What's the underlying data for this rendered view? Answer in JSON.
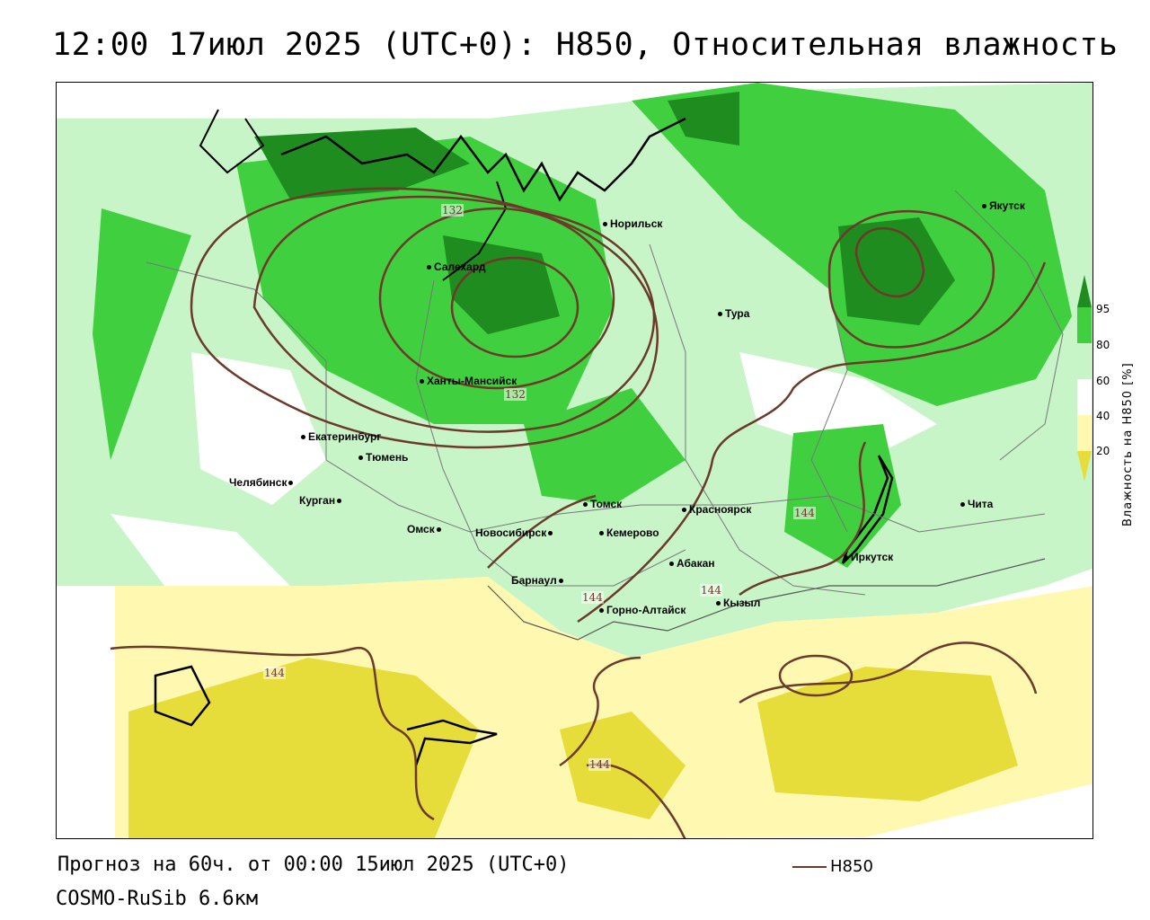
{
  "header": {
    "title": "12:00 17июл 2025 (UTC+0): H850, Относительная влажность"
  },
  "footer": {
    "forecast": "Прогноз на 60ч. от 00:00 15июл 2025 (UTC+0)",
    "model": "COSMO-RuSib 6.6км",
    "line_legend": "H850"
  },
  "colorbar": {
    "title": "Влажность на H850 [%]",
    "ticks": [
      "95",
      "80",
      "60",
      "40",
      "20"
    ],
    "colors": [
      "#1e8c1e",
      "#3fcf3f",
      "#c8f5c8",
      "#ffffff",
      "#fff8b0",
      "#e6dc3a"
    ]
  },
  "contour_labels": [
    "132",
    "132",
    "144",
    "144",
    "144",
    "144",
    "144"
  ],
  "cities": [
    {
      "name": "Якутск"
    },
    {
      "name": "Норильск"
    },
    {
      "name": "Салехард"
    },
    {
      "name": "Тура"
    },
    {
      "name": "Ханты-Мансийск"
    },
    {
      "name": "Екатеринбург"
    },
    {
      "name": "Тюмень"
    },
    {
      "name": "Челябинск"
    },
    {
      "name": "Курган"
    },
    {
      "name": "Омск"
    },
    {
      "name": "Новосибирск"
    },
    {
      "name": "Томск"
    },
    {
      "name": "Кемерово"
    },
    {
      "name": "Красноярск"
    },
    {
      "name": "Абакан"
    },
    {
      "name": "Барнаул"
    },
    {
      "name": "Горно-Алтайск"
    },
    {
      "name": "Кызыл"
    },
    {
      "name": "Иркутск"
    },
    {
      "name": "Чита"
    }
  ]
}
